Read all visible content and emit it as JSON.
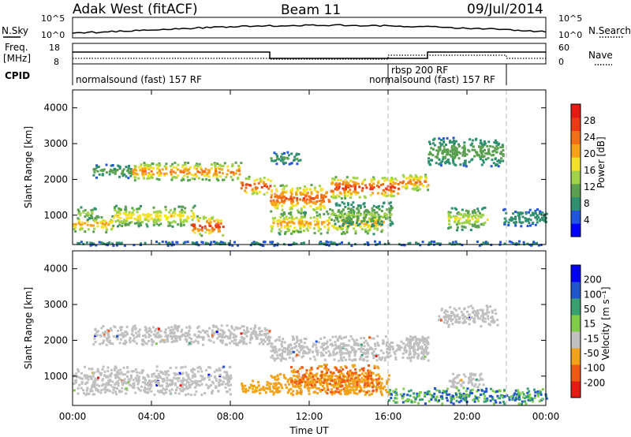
{
  "header": {
    "station": "Adak West (fitACF)",
    "beam": "Beam 11",
    "date": "09/Jul/2014"
  },
  "panels": {
    "noise": {
      "left_label": "N.Sky",
      "right_label": "N.Search",
      "ticks_left": [
        "10^5",
        "10^0"
      ],
      "ticks_right": [
        "10^5",
        "10^0"
      ]
    },
    "freq": {
      "left_label_1": "Freq.",
      "left_label_2": "[MHz]",
      "ticks_left": [
        "18",
        "8"
      ],
      "right_label": "Nave",
      "ticks_right": [
        "60",
        "0"
      ]
    },
    "cpid": {
      "label": "CPID",
      "segments": [
        {
          "text": "normalsound (fast) 157 RF"
        },
        {
          "text": "rbsp 200 RF"
        },
        {
          "text": "normalsound (fast) 157 RF"
        }
      ]
    }
  },
  "chart_data": [
    {
      "type": "heatmap",
      "title": "",
      "xlabel": "",
      "ylabel": "Slant Range [km]",
      "xticks": [
        "00:00",
        "04:00",
        "08:00",
        "12:00",
        "16:00",
        "20:00",
        "00:00"
      ],
      "yticks": [
        "1000",
        "2000",
        "3000",
        "4000"
      ],
      "xlim_hours": [
        0,
        24
      ],
      "ylim_km": [
        180,
        4500
      ],
      "colorbar": {
        "label": "Power [dB]",
        "ticks": [
          "28",
          "24",
          "20",
          "16",
          "12",
          "8",
          "4"
        ],
        "range": [
          0,
          30
        ]
      },
      "bands": [
        {
          "t0": 1.0,
          "t1": 3.0,
          "r0": 2050,
          "r1": 2450,
          "v": 9
        },
        {
          "t0": 3.0,
          "t1": 8.5,
          "r0": 2000,
          "r1": 2500,
          "v": 20
        },
        {
          "t0": 8.5,
          "t1": 10.0,
          "r0": 1600,
          "r1": 2100,
          "v": 24
        },
        {
          "t0": 0.0,
          "t1": 2.0,
          "r0": 550,
          "r1": 1000,
          "v": 18
        },
        {
          "t0": 0.2,
          "t1": 1.2,
          "r0": 900,
          "r1": 1250,
          "v": 12
        },
        {
          "t0": 2.0,
          "t1": 6.2,
          "r0": 700,
          "r1": 1300,
          "v": 16
        },
        {
          "t0": 6.0,
          "t1": 7.6,
          "r0": 450,
          "r1": 1000,
          "v": 24
        },
        {
          "t0": 10.0,
          "t1": 13.0,
          "r0": 1100,
          "r1": 1900,
          "v": 22
        },
        {
          "t0": 13.0,
          "t1": 16.5,
          "r0": 1500,
          "r1": 2100,
          "v": 24
        },
        {
          "t0": 16.5,
          "t1": 18.0,
          "r0": 1700,
          "r1": 2200,
          "v": 20
        },
        {
          "t0": 10.0,
          "t1": 15.8,
          "r0": 500,
          "r1": 1100,
          "v": 18
        },
        {
          "t0": 13.0,
          "t1": 16.2,
          "r0": 700,
          "r1": 1400,
          "v": 11
        },
        {
          "t0": 10.0,
          "t1": 11.5,
          "r0": 2450,
          "r1": 2800,
          "v": 8
        },
        {
          "t0": 18.0,
          "t1": 21.8,
          "r0": 2400,
          "r1": 3200,
          "v": 10
        },
        {
          "t0": 19.0,
          "t1": 21.0,
          "r0": 600,
          "r1": 1250,
          "v": 14
        },
        {
          "t0": 21.8,
          "t1": 24.0,
          "r0": 700,
          "r1": 1200,
          "v": 7
        },
        {
          "t0": 0.0,
          "t1": 24.0,
          "r0": 180,
          "r1": 300,
          "v": 6
        }
      ]
    },
    {
      "type": "heatmap",
      "title": "",
      "xlabel": "Time UT",
      "ylabel": "Slant Range [km]",
      "xticks": [
        "00:00",
        "04:00",
        "08:00",
        "12:00",
        "16:00",
        "20:00",
        "00:00"
      ],
      "yticks": [
        "1000",
        "2000",
        "3000",
        "4000"
      ],
      "xlim_hours": [
        0,
        24
      ],
      "ylim_km": [
        180,
        4500
      ],
      "colorbar": {
        "label": "Velocity [m s⁻¹]",
        "ticks": [
          "200",
          "100",
          "50",
          "15",
          "-15",
          "-50",
          "-100",
          "-200"
        ],
        "range": [
          -200,
          200
        ]
      },
      "ground_scatter_color": "#c0c0c0",
      "bands": [
        {
          "t0": 1.0,
          "t1": 10.0,
          "r0": 1900,
          "r1": 2450,
          "v": 0
        },
        {
          "t0": 10.0,
          "t1": 18.0,
          "r0": 1450,
          "r1": 2150,
          "v": 0
        },
        {
          "t0": 0.0,
          "t1": 8.0,
          "r0": 500,
          "r1": 1300,
          "v": 0
        },
        {
          "t0": 10.0,
          "t1": 16.0,
          "r0": 500,
          "r1": 1100,
          "v": -40
        },
        {
          "t0": 11.0,
          "t1": 15.5,
          "r0": 550,
          "r1": 1350,
          "v": -80
        },
        {
          "t0": 8.5,
          "t1": 10.0,
          "r0": 550,
          "r1": 900,
          "v": -60
        },
        {
          "t0": 17.0,
          "t1": 18.0,
          "r0": 1500,
          "r1": 2100,
          "v": 0
        },
        {
          "t0": 18.5,
          "t1": 21.5,
          "r0": 2400,
          "r1": 3000,
          "v": 0
        },
        {
          "t0": 19.0,
          "t1": 20.8,
          "r0": 700,
          "r1": 1100,
          "v": 0
        },
        {
          "t0": 16.0,
          "t1": 24.0,
          "r0": 250,
          "r1": 700,
          "v": 20
        }
      ]
    }
  ],
  "colors": {
    "power_scale": [
      "#0000ff",
      "#2255dd",
      "#2f8f6f",
      "#5aa050",
      "#9fd24a",
      "#f5e02a",
      "#f5a218",
      "#f07018",
      "#ec3a14",
      "#e41b14"
    ],
    "velocity_scale": [
      "#e41b14",
      "#f05a14",
      "#f2a21a",
      "#c0c0c0",
      "#7fcc4a",
      "#3aa070",
      "#2255cc",
      "#0000ee"
    ]
  }
}
